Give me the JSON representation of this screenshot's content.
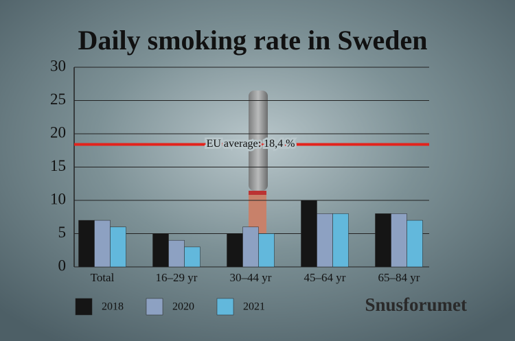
{
  "chart_data": {
    "type": "bar",
    "title": "Daily smoking rate in Sweden",
    "categories": [
      "Total",
      "16–29 yr",
      "30–44 yr",
      "45–64 yr",
      "65–84 yr"
    ],
    "series": [
      {
        "name": "2018",
        "color": "#151515",
        "values": [
          7,
          5,
          5,
          10,
          8
        ]
      },
      {
        "name": "2020",
        "color": "#8da1c2",
        "values": [
          7,
          4,
          6,
          8,
          8
        ]
      },
      {
        "name": "2021",
        "color": "#62b8dc",
        "values": [
          6,
          3,
          5,
          8,
          7
        ]
      }
    ],
    "ylim": [
      0,
      30
    ],
    "yticks": [
      0,
      5,
      10,
      15,
      20,
      25,
      30
    ],
    "grid": true,
    "reference_line": {
      "value": 18.4,
      "label": "EU average: 18,4 %",
      "color": "#e3231c"
    },
    "brand": "Snusforumet"
  }
}
